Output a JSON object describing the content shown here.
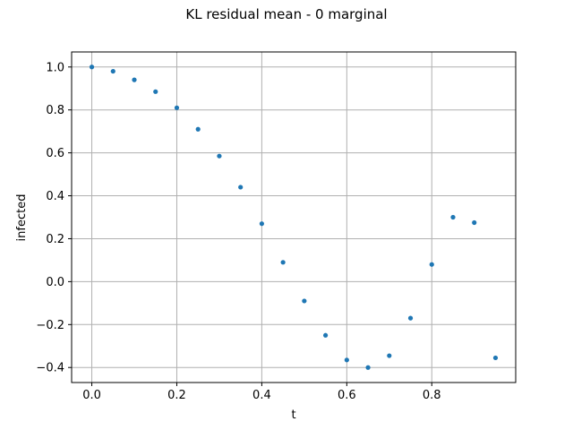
{
  "chart_data": {
    "type": "scatter",
    "title": "KL residual mean - 0 marginal",
    "xlabel": "t",
    "ylabel": "infected",
    "xlim": [
      -0.0475,
      0.9975
    ],
    "ylim": [
      -0.47,
      1.07
    ],
    "grid": true,
    "marker_color": "#1f77b4",
    "x_ticks": [
      0.0,
      0.2,
      0.4,
      0.6,
      0.8
    ],
    "x_tick_labels": [
      "0.0",
      "0.2",
      "0.4",
      "0.6",
      "0.8"
    ],
    "y_ticks": [
      -0.4,
      -0.2,
      0.0,
      0.2,
      0.4,
      0.6,
      0.8,
      1.0
    ],
    "y_tick_labels": [
      "−0.4",
      "−0.2",
      "0.0",
      "0.2",
      "0.4",
      "0.6",
      "0.8",
      "1.0"
    ],
    "x": [
      0.0,
      0.05,
      0.1,
      0.15,
      0.2,
      0.25,
      0.3,
      0.35,
      0.4,
      0.45,
      0.5,
      0.55,
      0.6,
      0.65,
      0.7,
      0.75,
      0.8,
      0.85,
      0.9,
      0.95
    ],
    "y": [
      1.0,
      0.98,
      0.94,
      0.885,
      0.81,
      0.71,
      0.585,
      0.44,
      0.27,
      0.09,
      -0.09,
      -0.25,
      -0.365,
      -0.4,
      -0.345,
      -0.17,
      0.08,
      0.3,
      0.275,
      -0.355
    ]
  }
}
